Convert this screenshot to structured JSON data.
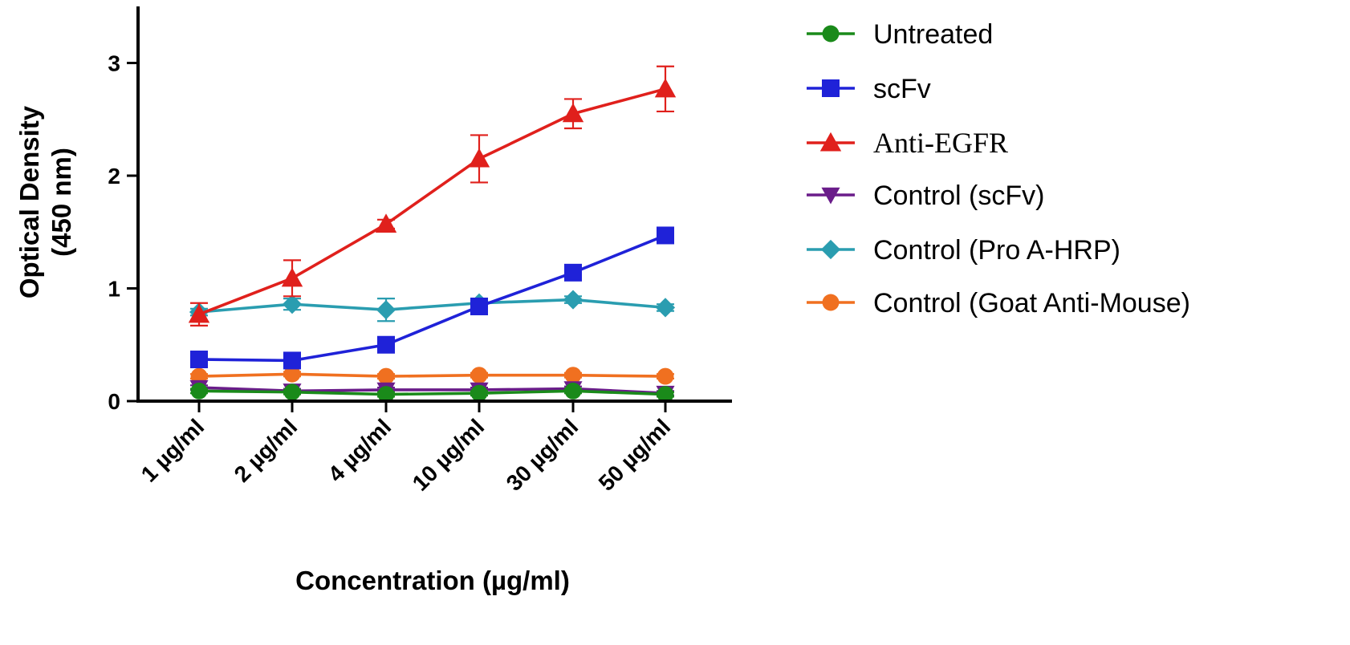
{
  "chart_data": {
    "type": "line",
    "xlabel": "Concentration (µg/ml)",
    "ylabel_line1": "Optical Density",
    "ylabel_line2": "(450 nm)",
    "ylim": [
      0,
      3.5
    ],
    "yticks": [
      0,
      1,
      2,
      3
    ],
    "categories": [
      "1 µg/ml",
      "2 µg/ml",
      "4 µg/ml",
      "10 µg/ml",
      "30 µg/ml",
      "50 µg/ml"
    ],
    "grid": false,
    "legend_position": "right",
    "series": [
      {
        "name": "Untreated",
        "color": "#1a8a1a",
        "marker": "circle",
        "values": [
          0.09,
          0.08,
          0.06,
          0.07,
          0.09,
          0.06
        ],
        "errors": [
          0.02,
          0.02,
          0.02,
          0.02,
          0.02,
          0.02
        ]
      },
      {
        "name": "scFv",
        "color": "#1f22d8",
        "marker": "square",
        "values": [
          0.37,
          0.36,
          0.5,
          0.84,
          1.14,
          1.47
        ],
        "errors": [
          0.02,
          0.02,
          0.03,
          0.03,
          0.03,
          0.03
        ]
      },
      {
        "name": "Anti-EGFR",
        "color": "#e0201c",
        "marker": "triangle-up",
        "values": [
          0.77,
          1.09,
          1.57,
          2.15,
          2.55,
          2.77
        ],
        "errors": [
          0.1,
          0.16,
          0.04,
          0.21,
          0.13,
          0.2
        ]
      },
      {
        "name": "Control (scFv)",
        "color": "#6a1c8a",
        "marker": "triangle-down",
        "values": [
          0.12,
          0.09,
          0.1,
          0.1,
          0.11,
          0.07
        ],
        "errors": [
          0.02,
          0.02,
          0.02,
          0.02,
          0.02,
          0.02
        ]
      },
      {
        "name": "Control (Pro A-HRP)",
        "color": "#2a9db0",
        "marker": "diamond",
        "values": [
          0.79,
          0.86,
          0.81,
          0.87,
          0.9,
          0.83
        ],
        "errors": [
          0.03,
          0.05,
          0.1,
          0.03,
          0.03,
          0.03
        ]
      },
      {
        "name": "Control (Goat Anti-Mouse)",
        "color": "#f07020",
        "marker": "circle",
        "values": [
          0.22,
          0.24,
          0.22,
          0.23,
          0.23,
          0.22
        ],
        "errors": [
          0.02,
          0.02,
          0.02,
          0.02,
          0.02,
          0.02
        ]
      }
    ]
  }
}
